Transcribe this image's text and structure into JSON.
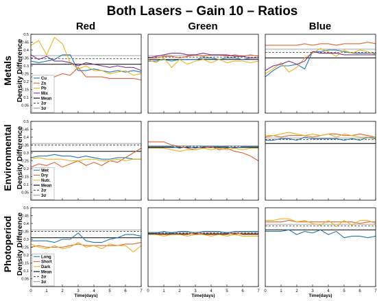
{
  "figure": {
    "title": "Both Lasers – Gain 10 – Ratios",
    "col_titles": [
      "Red",
      "Green",
      "Blue"
    ],
    "row_titles": [
      "Metals",
      "Environmental",
      "Photoperiod"
    ],
    "ylabel": "Density Difference",
    "xlabel": "Time(days)",
    "xticks": [
      "0",
      "1",
      "2",
      "3",
      "4",
      "5",
      "6",
      "7"
    ],
    "yticks": [
      "0.05",
      "0.1",
      "0.15",
      "0.2",
      "0.25",
      "0.3",
      "0.35",
      "0.4",
      "0.45",
      "0.5"
    ],
    "legends": [
      [
        "Cu",
        "Zn",
        "Pb",
        "Mix",
        "Mean",
        "2σ",
        "3σ"
      ],
      [
        "Wet",
        "Dry",
        "Nutr.",
        "Mean",
        "2σ",
        "3σ"
      ],
      [
        "Long",
        "Short",
        "Dark",
        "Mean",
        "2σ",
        "3σ"
      ]
    ]
  },
  "colors": {
    "c1": "#1f77b4",
    "c2": "#e2612d",
    "c3": "#edb120",
    "c4": "#7e2f8e",
    "mean": "#000000",
    "sigma2": "#555555",
    "sigma3": "#999999",
    "frame": "#000000"
  },
  "chart_data": [
    {
      "type": "line",
      "row": 0,
      "col": 0,
      "xlim": [
        0,
        7
      ],
      "ylim": [
        0,
        0.5
      ],
      "grid": false,
      "legend": "bottom-left",
      "x": [
        0,
        0.5,
        1,
        1.5,
        2,
        2.5,
        3,
        3.5,
        4,
        4.5,
        5,
        5.5,
        6,
        6.5,
        7
      ],
      "series": [
        {
          "name": "Cu",
          "color_key": "c1",
          "values": [
            0.33,
            0.32,
            0.33,
            0.34,
            0.37,
            0.37,
            0.27,
            0.27,
            0.28,
            0.27,
            0.26,
            0.27,
            0.26,
            0.27,
            0.26
          ]
        },
        {
          "name": "Zn",
          "color_key": "c2",
          "values": [
            0.23,
            0.22,
            0.24,
            0.23,
            0.25,
            0.24,
            0.29,
            0.23,
            0.23,
            0.23,
            0.22,
            0.22,
            0.22,
            0.22,
            0.21
          ]
        },
        {
          "name": "Pb",
          "color_key": "c3",
          "values": [
            0.43,
            0.46,
            0.37,
            0.48,
            0.44,
            0.32,
            0.28,
            0.3,
            0.27,
            0.27,
            0.25,
            0.26,
            0.27,
            0.24,
            0.25
          ]
        },
        {
          "name": "Mix",
          "color_key": "c4",
          "values": [
            0.37,
            0.34,
            0.36,
            0.33,
            0.33,
            0.32,
            0.3,
            0.32,
            0.31,
            0.3,
            0.29,
            0.3,
            0.29,
            0.29,
            0.27
          ]
        }
      ],
      "mean": 0.31,
      "sigma2": 0.345,
      "sigma3": 0.365
    },
    {
      "type": "line",
      "row": 0,
      "col": 1,
      "xlim": [
        0,
        7
      ],
      "ylim": [
        0,
        0.5
      ],
      "grid": false,
      "x": [
        0,
        0.5,
        1,
        1.5,
        2,
        2.5,
        3,
        3.5,
        4,
        4.5,
        5,
        5.5,
        6,
        6.5,
        7
      ],
      "series": [
        {
          "name": "Cu",
          "color_key": "c1",
          "values": [
            0.33,
            0.33,
            0.34,
            0.33,
            0.34,
            0.34,
            0.34,
            0.35,
            0.35,
            0.34,
            0.35,
            0.35,
            0.34,
            0.35,
            0.35
          ]
        },
        {
          "name": "Zn",
          "color_key": "c2",
          "values": [
            0.35,
            0.35,
            0.36,
            0.36,
            0.35,
            0.36,
            0.37,
            0.36,
            0.37,
            0.37,
            0.36,
            0.37,
            0.36,
            0.37,
            0.36
          ]
        },
        {
          "name": "Pb",
          "color_key": "c3",
          "values": [
            0.34,
            0.32,
            0.35,
            0.29,
            0.34,
            0.31,
            0.33,
            0.34,
            0.32,
            0.34,
            0.32,
            0.33,
            0.33,
            0.32,
            0.33
          ]
        },
        {
          "name": "Mix",
          "color_key": "c4",
          "values": [
            0.35,
            0.36,
            0.37,
            0.38,
            0.38,
            0.37,
            0.37,
            0.38,
            0.37,
            0.37,
            0.37,
            0.36,
            0.36,
            0.35,
            0.35
          ]
        }
      ],
      "mean": 0.34,
      "sigma2": 0.355,
      "sigma3": 0.365
    },
    {
      "type": "line",
      "row": 0,
      "col": 2,
      "xlim": [
        0,
        7
      ],
      "ylim": [
        0,
        0.5
      ],
      "grid": false,
      "x": [
        0,
        0.5,
        1,
        1.5,
        2,
        2.5,
        3,
        3.5,
        4,
        4.5,
        5,
        5.5,
        6,
        6.5,
        7
      ],
      "series": [
        {
          "name": "Cu",
          "color_key": "c1",
          "values": [
            0.23,
            0.27,
            0.3,
            0.3,
            0.31,
            0.28,
            0.39,
            0.39,
            0.4,
            0.4,
            0.39,
            0.38,
            0.38,
            0.38,
            0.38
          ]
        },
        {
          "name": "Zn",
          "color_key": "c2",
          "values": [
            0.43,
            0.43,
            0.43,
            0.43,
            0.43,
            0.44,
            0.43,
            0.44,
            0.44,
            0.43,
            0.44,
            0.44,
            0.44,
            0.45,
            0.44
          ]
        },
        {
          "name": "Pb",
          "color_key": "c3",
          "values": [
            0.25,
            0.28,
            0.32,
            0.26,
            0.29,
            0.35,
            0.38,
            0.41,
            0.39,
            0.36,
            0.4,
            0.38,
            0.4,
            0.39,
            0.37
          ]
        },
        {
          "name": "Mix",
          "color_key": "c4",
          "values": [
            0.27,
            0.3,
            0.31,
            0.33,
            0.31,
            0.33,
            0.39,
            0.38,
            0.38,
            0.38,
            0.37,
            0.37,
            0.37,
            0.37,
            0.37
          ]
        }
      ],
      "mean": 0.35,
      "sigma2": 0.385,
      "sigma3": 0.405
    },
    {
      "type": "line",
      "row": 1,
      "col": 0,
      "xlim": [
        0,
        7
      ],
      "ylim": [
        0,
        0.5
      ],
      "grid": false,
      "legend": "bottom-left",
      "x": [
        0,
        0.5,
        1,
        1.5,
        2,
        2.5,
        3,
        3.5,
        4,
        4.5,
        5,
        5.5,
        6,
        6.5,
        7
      ],
      "series": [
        {
          "name": "Wet",
          "color_key": "c1",
          "values": [
            0.27,
            0.28,
            0.28,
            0.29,
            0.28,
            0.28,
            0.27,
            0.28,
            0.27,
            0.26,
            0.26,
            0.27,
            0.27,
            0.26,
            0.26
          ]
        },
        {
          "name": "Dry",
          "color_key": "c2",
          "values": [
            0.21,
            0.23,
            0.22,
            0.24,
            0.21,
            0.23,
            0.25,
            0.22,
            0.24,
            0.22,
            0.25,
            0.24,
            0.27,
            0.3,
            0.33
          ]
        },
        {
          "name": "Nutr.",
          "color_key": "c3",
          "values": [
            0.26,
            0.27,
            0.26,
            0.26,
            0.26,
            0.25,
            0.25,
            0.26,
            0.26,
            0.25,
            0.25,
            0.26,
            0.25,
            0.26,
            0.26
          ]
        }
      ],
      "mean": 0.31,
      "sigma2": 0.35,
      "sigma3": 0.36
    },
    {
      "type": "line",
      "row": 1,
      "col": 1,
      "xlim": [
        0,
        7
      ],
      "ylim": [
        0,
        0.5
      ],
      "grid": false,
      "x": [
        0,
        0.5,
        1,
        1.5,
        2,
        2.5,
        3,
        3.5,
        4,
        4.5,
        5,
        5.5,
        6,
        6.5,
        7
      ],
      "series": [
        {
          "name": "Wet",
          "color_key": "c1",
          "values": [
            0.34,
            0.34,
            0.34,
            0.34,
            0.33,
            0.34,
            0.33,
            0.34,
            0.34,
            0.34,
            0.34,
            0.33,
            0.34,
            0.34,
            0.34
          ]
        },
        {
          "name": "Dry",
          "color_key": "c2",
          "values": [
            0.37,
            0.37,
            0.37,
            0.35,
            0.34,
            0.33,
            0.32,
            0.33,
            0.34,
            0.32,
            0.33,
            0.31,
            0.3,
            0.28,
            0.25
          ]
        },
        {
          "name": "Nutr.",
          "color_key": "c3",
          "values": [
            0.33,
            0.33,
            0.33,
            0.32,
            0.31,
            0.32,
            0.32,
            0.33,
            0.32,
            0.33,
            0.32,
            0.33,
            0.32,
            0.33,
            0.33
          ]
        }
      ],
      "mean": 0.335,
      "sigma2": 0.34,
      "sigma3": 0.345
    },
    {
      "type": "line",
      "row": 1,
      "col": 2,
      "xlim": [
        0,
        7
      ],
      "ylim": [
        0,
        0.5
      ],
      "grid": false,
      "x": [
        0,
        0.5,
        1,
        1.5,
        2,
        2.5,
        3,
        3.5,
        4,
        4.5,
        5,
        5.5,
        6,
        6.5,
        7
      ],
      "series": [
        {
          "name": "Wet",
          "color_key": "c1",
          "values": [
            0.38,
            0.38,
            0.39,
            0.39,
            0.38,
            0.4,
            0.39,
            0.39,
            0.39,
            0.39,
            0.38,
            0.39,
            0.38,
            0.4,
            0.39
          ]
        },
        {
          "name": "Dry",
          "color_key": "c2",
          "values": [
            0.4,
            0.41,
            0.4,
            0.41,
            0.41,
            0.41,
            0.4,
            0.41,
            0.42,
            0.42,
            0.41,
            0.41,
            0.42,
            0.41,
            0.4
          ]
        },
        {
          "name": "Nutr.",
          "color_key": "c3",
          "values": [
            0.41,
            0.41,
            0.42,
            0.43,
            0.42,
            0.41,
            0.42,
            0.41,
            0.42,
            0.4,
            0.42,
            0.41,
            0.4,
            0.4,
            0.4
          ]
        }
      ],
      "mean": 0.36,
      "sigma2": 0.385,
      "sigma3": 0.395
    },
    {
      "type": "line",
      "row": 2,
      "col": 0,
      "xlim": [
        0,
        7
      ],
      "ylim": [
        0,
        0.5
      ],
      "grid": false,
      "legend": "bottom-left",
      "x": [
        0,
        0.5,
        1,
        1.5,
        2,
        2.5,
        3,
        3.5,
        4,
        4.5,
        5,
        5.5,
        6,
        6.5,
        7
      ],
      "series": [
        {
          "name": "Long",
          "color_key": "c1",
          "values": [
            0.29,
            0.29,
            0.29,
            0.28,
            0.3,
            0.3,
            0.34,
            0.29,
            0.28,
            0.28,
            0.3,
            0.31,
            0.33,
            0.33,
            0.32
          ]
        },
        {
          "name": "Short",
          "color_key": "c2",
          "values": [
            0.25,
            0.26,
            0.25,
            0.25,
            0.25,
            0.26,
            0.27,
            0.26,
            0.26,
            0.26,
            0.26,
            0.26,
            0.27,
            0.27,
            0.28
          ]
        },
        {
          "name": "Dark",
          "color_key": "c3",
          "values": [
            0.27,
            0.25,
            0.24,
            0.26,
            0.24,
            0.25,
            0.28,
            0.25,
            0.26,
            0.24,
            0.27,
            0.26,
            0.26,
            0.22,
            0.26
          ]
        }
      ],
      "mean": 0.31,
      "sigma2": 0.35,
      "sigma3": 0.36
    },
    {
      "type": "line",
      "row": 2,
      "col": 1,
      "xlim": [
        0,
        7
      ],
      "ylim": [
        0,
        0.5
      ],
      "grid": false,
      "x": [
        0,
        0.5,
        1,
        1.5,
        2,
        2.5,
        3,
        3.5,
        4,
        4.5,
        5,
        5.5,
        6,
        6.5,
        7
      ],
      "series": [
        {
          "name": "Long",
          "color_key": "c1",
          "values": [
            0.34,
            0.34,
            0.35,
            0.34,
            0.35,
            0.35,
            0.34,
            0.35,
            0.35,
            0.35,
            0.34,
            0.35,
            0.35,
            0.35,
            0.35
          ]
        },
        {
          "name": "Short",
          "color_key": "c2",
          "values": [
            0.33,
            0.33,
            0.33,
            0.33,
            0.33,
            0.33,
            0.34,
            0.33,
            0.33,
            0.33,
            0.33,
            0.34,
            0.33,
            0.33,
            0.33
          ]
        },
        {
          "name": "Dark",
          "color_key": "c3",
          "values": [
            0.33,
            0.33,
            0.32,
            0.33,
            0.33,
            0.32,
            0.33,
            0.33,
            0.32,
            0.33,
            0.32,
            0.33,
            0.32,
            0.32,
            0.32
          ]
        }
      ],
      "mean": 0.335,
      "sigma2": 0.34,
      "sigma3": 0.345
    },
    {
      "type": "line",
      "row": 2,
      "col": 2,
      "xlim": [
        0,
        7
      ],
      "ylim": [
        0,
        0.5
      ],
      "grid": false,
      "x": [
        0,
        0.5,
        1,
        1.5,
        2,
        2.5,
        3,
        3.5,
        4,
        4.5,
        5,
        5.5,
        6,
        6.5,
        7
      ],
      "series": [
        {
          "name": "Long",
          "color_key": "c1",
          "values": [
            0.35,
            0.35,
            0.35,
            0.36,
            0.33,
            0.35,
            0.34,
            0.36,
            0.33,
            0.35,
            0.31,
            0.32,
            0.32,
            0.31,
            0.32
          ]
        },
        {
          "name": "Short",
          "color_key": "c2",
          "values": [
            0.41,
            0.41,
            0.41,
            0.42,
            0.41,
            0.41,
            0.41,
            0.41,
            0.41,
            0.41,
            0.41,
            0.41,
            0.4,
            0.41,
            0.41
          ]
        },
        {
          "name": "Dark",
          "color_key": "c3",
          "values": [
            0.42,
            0.42,
            0.43,
            0.43,
            0.41,
            0.42,
            0.4,
            0.39,
            0.42,
            0.38,
            0.42,
            0.39,
            0.42,
            0.42,
            0.4
          ]
        }
      ],
      "mean": 0.36,
      "sigma2": 0.385,
      "sigma3": 0.395
    }
  ]
}
